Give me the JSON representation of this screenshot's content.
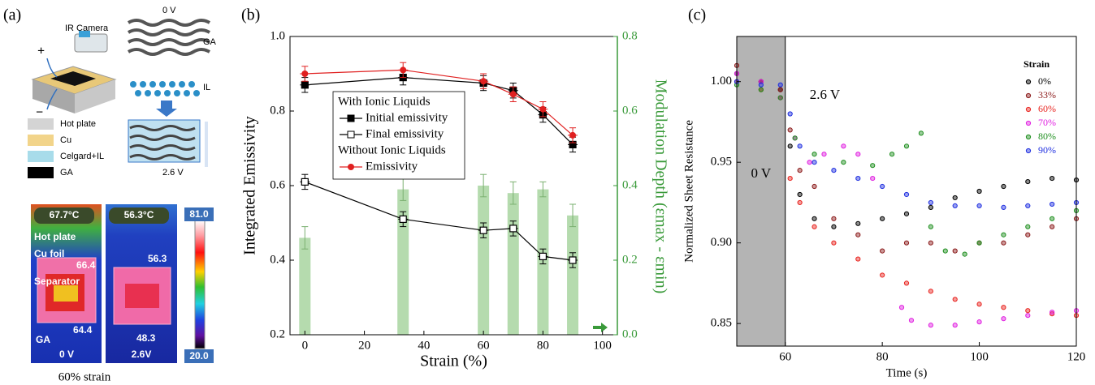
{
  "panel_a": {
    "label": "(a)",
    "ir_camera": "IR Camera",
    "plus": "+",
    "minus": "−",
    "state_off": "0 V",
    "ga": "GA",
    "il": "IL",
    "state_on": "2.6 V",
    "legend": [
      "Hot plate",
      "Cu",
      "Celgard+IL",
      "GA"
    ],
    "thermal": {
      "temp_left": "67.7°C",
      "temp_right": "56.3°C",
      "scale_max": "81.0",
      "scale_min": "20.0",
      "hot_plate": "Hot plate",
      "cu_foil": "Cu foil",
      "cu_left": "66.4",
      "cu_right": "56.3",
      "separator": "Separator",
      "ga": "GA",
      "ga_left": "64.4",
      "ga_right": "48.3",
      "state_left": "0 V",
      "state_right": "2.6V"
    },
    "caption": "60% strain"
  },
  "chart_data": [
    {
      "type": "line",
      "panel_label": "(b)",
      "xlabel": "Strain (%)",
      "ylabel": "Integrated Emissivity",
      "y2label": "Modulation Depth (εmax - εmin)",
      "y2color": "#3a9a3a",
      "x": [
        0,
        33,
        60,
        70,
        80,
        90
      ],
      "xlim": [
        -5,
        105
      ],
      "xticks": [
        0,
        20,
        40,
        60,
        80,
        100
      ],
      "ylim": [
        0.2,
        1.0
      ],
      "yticks": [
        0.2,
        0.4,
        0.6,
        0.8,
        {
          "value": 1.0,
          "label": "1.0"
        }
      ],
      "y2lim": [
        0,
        0.8
      ],
      "y2ticks": [
        {
          "value": 0,
          "label": "0.0"
        },
        0.2,
        0.4,
        0.6,
        0.8
      ],
      "series": [
        {
          "name": "Initial emissivity",
          "group": "With Ionic Liquids",
          "color": "#000000",
          "marker": "filled-square",
          "values": [
            0.87,
            0.89,
            0.875,
            0.855,
            0.79,
            0.71
          ],
          "errors": [
            0.02,
            0.02,
            0.02,
            0.02,
            0.02,
            0.02
          ]
        },
        {
          "name": "Final emissivity",
          "group": "With Ionic Liquids",
          "color": "#000000",
          "marker": "open-square",
          "values": [
            0.61,
            0.51,
            0.48,
            0.485,
            0.41,
            0.4
          ],
          "errors": [
            0.02,
            0.02,
            0.02,
            0.02,
            0.02,
            0.02
          ]
        },
        {
          "name": "Emissivity",
          "group": "Without Ionic Liquids",
          "color": "#e02020",
          "marker": "circle",
          "values": [
            0.9,
            0.91,
            0.88,
            0.845,
            0.805,
            0.735
          ],
          "errors": [
            0.02,
            0.02,
            0.02,
            0.02,
            0.02,
            0.02
          ]
        }
      ],
      "bars": {
        "axis": "y2",
        "color": "#a8d5a0",
        "values": [
          0.26,
          0.39,
          0.4,
          0.38,
          0.39,
          0.32
        ],
        "errors": [
          0.03,
          0.03,
          0.03,
          0.03,
          0.02,
          0.03
        ]
      }
    },
    {
      "type": "scatter",
      "panel_label": "(c)",
      "xlabel": "Time (s)",
      "ylabel": "Normalized Sheet Resistance",
      "legend_title": "Strain",
      "xlim": [
        50,
        120
      ],
      "xticks": [
        60,
        80,
        100,
        120
      ],
      "ylim": [
        0.836,
        1.028
      ],
      "yticks": [
        0.85,
        {
          "value": 0.9,
          "label": "0.90"
        },
        0.95,
        {
          "value": 1.0,
          "label": "1.00"
        }
      ],
      "shaded_xrange": [
        50,
        60
      ],
      "shade_color": "#b4b4b4",
      "annotations": [
        "0 V",
        "2.6 V"
      ],
      "series": [
        {
          "name": "0%",
          "color": "#000000",
          "x": [
            50,
            55,
            59,
            61,
            63,
            66,
            70,
            75,
            80,
            85,
            90,
            95,
            100,
            105,
            110,
            115,
            120
          ],
          "values": [
            1.005,
            1.0,
            0.995,
            0.96,
            0.93,
            0.915,
            0.91,
            0.912,
            0.915,
            0.918,
            0.922,
            0.928,
            0.932,
            0.935,
            0.938,
            0.94,
            0.939
          ]
        },
        {
          "name": "33%",
          "color": "#8b1a1a",
          "x": [
            50,
            55,
            59,
            61,
            63,
            66,
            70,
            75,
            80,
            85,
            90,
            95,
            100,
            105,
            110,
            115,
            120
          ],
          "values": [
            1.01,
            1.0,
            0.995,
            0.97,
            0.945,
            0.935,
            0.915,
            0.905,
            0.895,
            0.9,
            0.9,
            0.895,
            0.9,
            0.9,
            0.905,
            0.91,
            0.915
          ]
        },
        {
          "name": "60%",
          "color": "#e8241f",
          "x": [
            50,
            55,
            59,
            61,
            63,
            66,
            70,
            75,
            80,
            85,
            90,
            95,
            100,
            105,
            110,
            115,
            120
          ],
          "values": [
            1.0,
            0.995,
            0.99,
            0.94,
            0.925,
            0.91,
            0.9,
            0.89,
            0.88,
            0.875,
            0.87,
            0.865,
            0.862,
            0.86,
            0.858,
            0.856,
            0.855
          ]
        },
        {
          "name": "70%",
          "color": "#e020e0",
          "x": [
            50,
            55,
            59,
            62,
            65,
            68,
            72,
            75,
            78,
            84,
            86,
            90,
            95,
            100,
            105,
            110,
            115,
            120
          ],
          "values": [
            1.005,
            1.0,
            0.99,
            0.965,
            0.95,
            0.955,
            0.96,
            0.955,
            0.94,
            0.86,
            0.852,
            0.849,
            0.849,
            0.851,
            0.853,
            0.855,
            0.857,
            0.858
          ]
        },
        {
          "name": "80%",
          "color": "#1f8f1f",
          "x": [
            50,
            55,
            59,
            62,
            66,
            72,
            78,
            82,
            85,
            88,
            90,
            93,
            97,
            100,
            105,
            110,
            115,
            120
          ],
          "values": [
            0.998,
            0.995,
            0.99,
            0.965,
            0.955,
            0.95,
            0.948,
            0.955,
            0.96,
            0.968,
            0.91,
            0.895,
            0.893,
            0.9,
            0.905,
            0.91,
            0.915,
            0.92
          ]
        },
        {
          "name": "90%",
          "color": "#1f2fe0",
          "x": [
            50,
            55,
            59,
            61,
            63,
            66,
            70,
            75,
            80,
            85,
            90,
            95,
            100,
            105,
            110,
            115,
            120
          ],
          "values": [
            1.0,
            0.998,
            0.998,
            0.98,
            0.96,
            0.95,
            0.945,
            0.94,
            0.935,
            0.93,
            0.925,
            0.923,
            0.923,
            0.922,
            0.923,
            0.924,
            0.925
          ]
        }
      ]
    }
  ]
}
